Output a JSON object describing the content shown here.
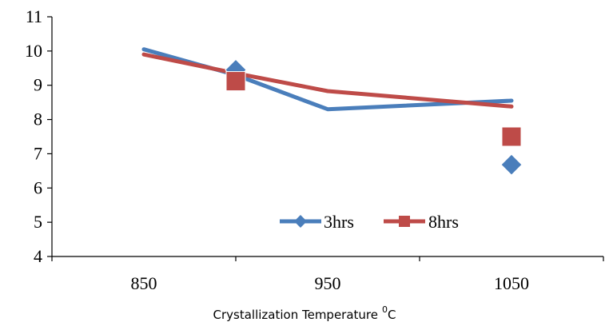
{
  "chart_data": {
    "type": "line",
    "x": [
      850,
      900,
      950,
      1050
    ],
    "x_ticks": [
      "850",
      "950",
      "1050"
    ],
    "y_ticks": [
      "4",
      "5",
      "6",
      "7",
      "8",
      "9",
      "10",
      "11"
    ],
    "ylim": [
      4,
      11
    ],
    "xlim": [
      800,
      1100
    ],
    "xlabel": "Crystallization Temperature",
    "xlabel_unit": "0C",
    "xlabel_unit_sup": "0",
    "xlabel_unit_base": "C",
    "grid": false,
    "legend": "bottom-center",
    "series": [
      {
        "name": "3hrs",
        "color": "#4a7ebb",
        "marker": "diamond",
        "line": [
          10.05,
          9.3,
          8.3,
          8.55
        ],
        "markers": [
          {
            "x": 900,
            "y": 9.45
          },
          {
            "x": 1050,
            "y": 6.68
          }
        ]
      },
      {
        "name": "8hrs",
        "color": "#be4b48",
        "marker": "square",
        "line": [
          9.9,
          9.35,
          8.83,
          8.38
        ],
        "markers": [
          {
            "x": 900,
            "y": 9.12
          },
          {
            "x": 1050,
            "y": 7.5
          }
        ]
      }
    ]
  }
}
